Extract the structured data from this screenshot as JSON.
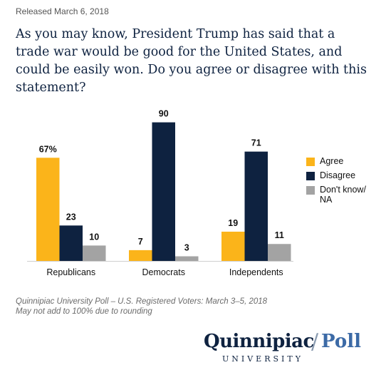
{
  "header": {
    "released": "Released March 6, 2018",
    "question": "As you may know, President Trump has said that a trade war would be good for the United States, and could be easily won. Do you agree or disagree with this statement?"
  },
  "chart_data": {
    "type": "bar",
    "categories": [
      "Republicans",
      "Democrats",
      "Independents"
    ],
    "series": [
      {
        "name": "Agree",
        "values": [
          67,
          7,
          19
        ],
        "color": "#fbb41a"
      },
      {
        "name": "Disagree",
        "values": [
          23,
          90,
          71
        ],
        "color": "#0e2240"
      },
      {
        "name": "Don't know/ NA",
        "values": [
          10,
          3,
          11
        ],
        "color": "#a3a3a3"
      }
    ],
    "data_labels": [
      [
        "67%",
        "23",
        "10"
      ],
      [
        "7",
        "90",
        "3"
      ],
      [
        "19",
        "71",
        "11"
      ]
    ],
    "ylim": [
      0,
      100
    ],
    "grid": false,
    "legend_position": "right"
  },
  "legend": {
    "agree": "Agree",
    "disagree": "Disagree",
    "dont_know_line1": "Don't know/",
    "dont_know_line2": "NA"
  },
  "footer": {
    "source": "Quinnipiac University Poll – U.S. Registered Voters: March 3–5, 2018",
    "note": "May not add to 100% due to rounding"
  },
  "logo": {
    "name": "Quinnipiac",
    "slash": "/",
    "poll": "Poll",
    "university": "UNIVERSITY"
  }
}
